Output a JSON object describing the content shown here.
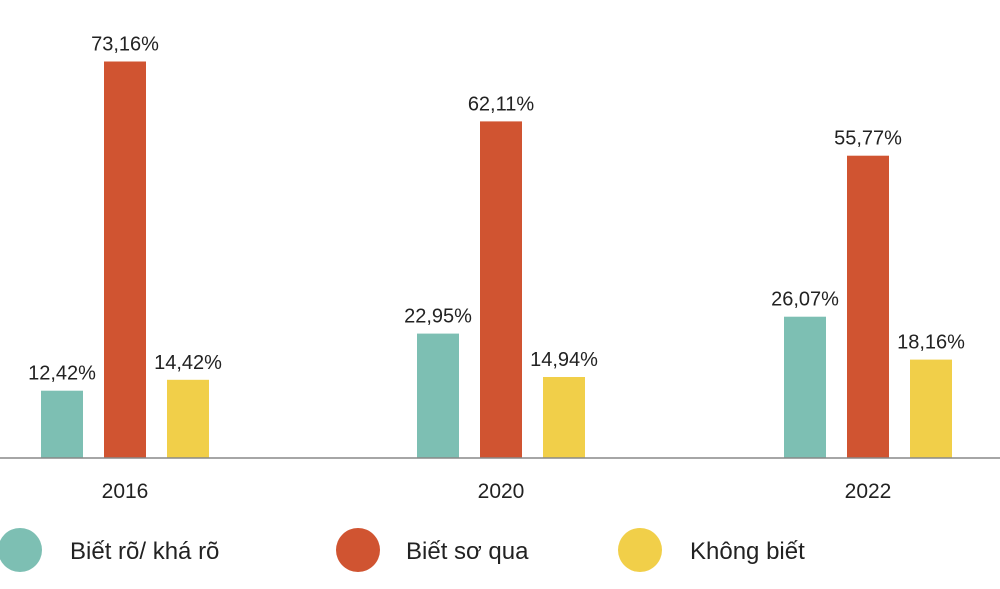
{
  "chart_data": {
    "type": "bar",
    "categories": [
      "2016",
      "2020",
      "2022"
    ],
    "series": [
      {
        "name": "Biết rõ/ khá rõ",
        "color": "#7dbfb3",
        "values": [
          12.42,
          22.95,
          26.07
        ],
        "labels": [
          "12,42%",
          "22,95%",
          "26,07%"
        ]
      },
      {
        "name": "Biết sơ qua",
        "color": "#d05431",
        "values": [
          73.16,
          62.11,
          55.77
        ],
        "labels": [
          "73,16%",
          "62,11%",
          "55,77%"
        ]
      },
      {
        "name": "Không biết",
        "color": "#f1cf49",
        "values": [
          14.42,
          14.94,
          18.16
        ],
        "labels": [
          "14,42%",
          "14,94%",
          "18,16%"
        ]
      }
    ],
    "ylim": [
      0,
      100
    ],
    "grid": false,
    "legend_position": "bottom"
  }
}
